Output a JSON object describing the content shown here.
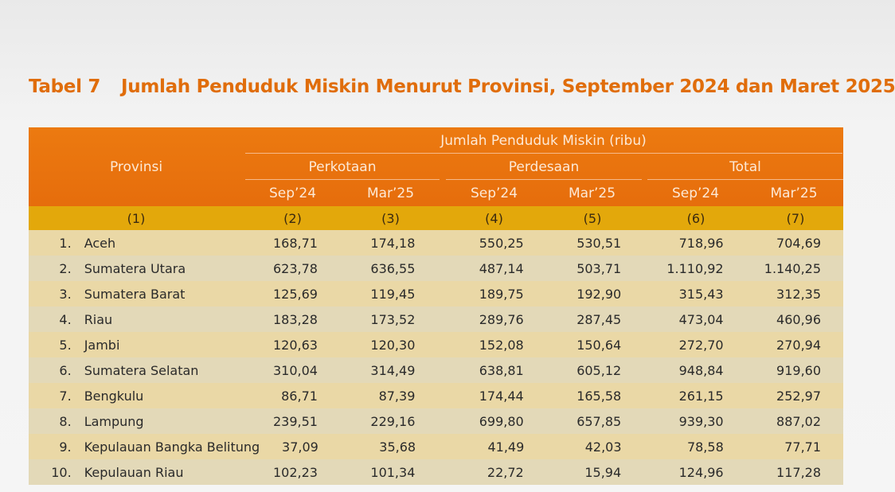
{
  "title": {
    "label": "Tabel 7",
    "text": "Jumlah Penduduk Miskin Menurut Provinsi, September 2024 dan Maret 2025"
  },
  "header": {
    "provinsi": "Provinsi",
    "group": "Jumlah Penduduk Miskin (ribu)",
    "perkotaan": "Perkotaan",
    "perdesaan": "Perdesaan",
    "total": "Total",
    "periods": [
      "Sep’24",
      "Mar’25",
      "Sep’24",
      "Mar’25",
      "Sep’24",
      "Mar’25"
    ],
    "col_numbers": [
      "(1)",
      "(2)",
      "(3)",
      "(4)",
      "(5)",
      "(6)",
      "(7)"
    ]
  },
  "rows": [
    {
      "no": "1.",
      "name": "Aceh",
      "v": [
        "168,71",
        "174,18",
        "550,25",
        "530,51",
        "718,96",
        "704,69"
      ]
    },
    {
      "no": "2.",
      "name": "Sumatera Utara",
      "v": [
        "623,78",
        "636,55",
        "487,14",
        "503,71",
        "1.110,92",
        "1.140,25"
      ]
    },
    {
      "no": "3.",
      "name": "Sumatera Barat",
      "v": [
        "125,69",
        "119,45",
        "189,75",
        "192,90",
        "315,43",
        "312,35"
      ]
    },
    {
      "no": "4.",
      "name": "Riau",
      "v": [
        "183,28",
        "173,52",
        "289,76",
        "287,45",
        "473,04",
        "460,96"
      ]
    },
    {
      "no": "5.",
      "name": "Jambi",
      "v": [
        "120,63",
        "120,30",
        "152,08",
        "150,64",
        "272,70",
        "270,94"
      ]
    },
    {
      "no": "6.",
      "name": "Sumatera Selatan",
      "v": [
        "310,04",
        "314,49",
        "638,81",
        "605,12",
        "948,84",
        "919,60"
      ]
    },
    {
      "no": "7.",
      "name": "Bengkulu",
      "v": [
        "86,71",
        "87,39",
        "174,44",
        "165,58",
        "261,15",
        "252,97"
      ]
    },
    {
      "no": "8.",
      "name": "Lampung",
      "v": [
        "239,51",
        "229,16",
        "699,80",
        "657,85",
        "939,30",
        "887,02"
      ]
    },
    {
      "no": "9.",
      "name": "Kepulauan Bangka Belitung",
      "v": [
        "37,09",
        "35,68",
        "41,49",
        "42,03",
        "78,58",
        "77,71"
      ]
    },
    {
      "no": "10.",
      "name": "Kepulauan Riau",
      "v": [
        "102,23",
        "101,34",
        "22,72",
        "15,94",
        "124,96",
        "117,28"
      ]
    }
  ]
}
